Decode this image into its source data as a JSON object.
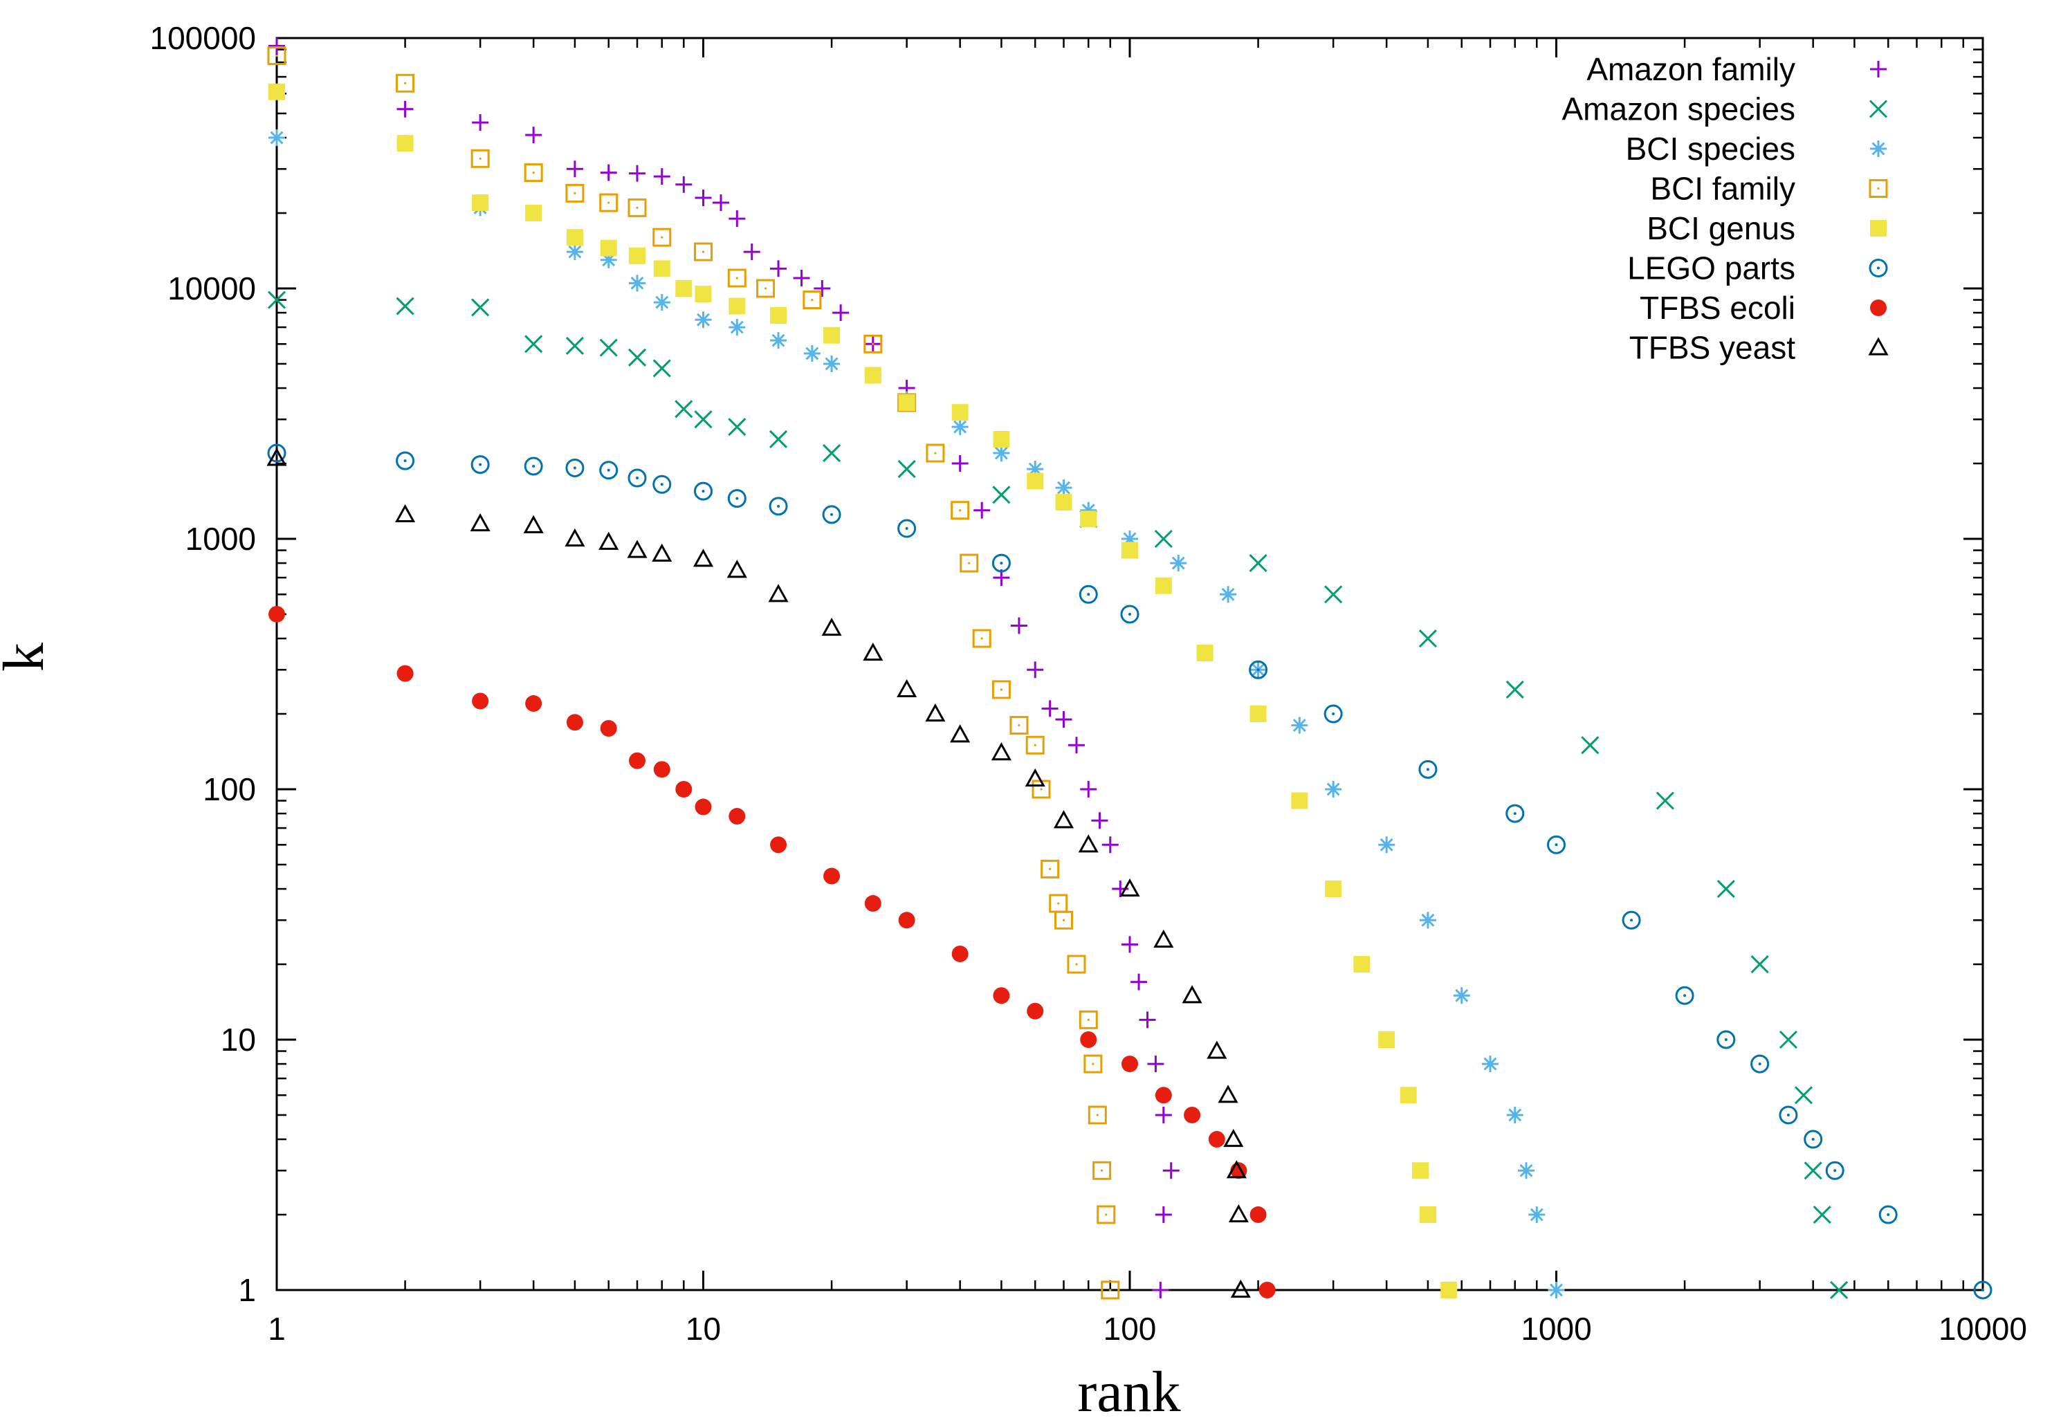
{
  "chart_data": {
    "type": "scatter",
    "title": "",
    "xlabel": "rank",
    "ylabel": "k",
    "xscale": "log",
    "yscale": "log",
    "xlim": [
      1,
      10000
    ],
    "ylim": [
      1,
      100000
    ],
    "xticks": [
      1,
      10,
      100,
      1000,
      10000
    ],
    "xtick_labels": [
      "1",
      "10",
      "100",
      "1000",
      "10000"
    ],
    "yticks": [
      1,
      10,
      100,
      1000,
      10000,
      100000
    ],
    "ytick_labels": [
      "1",
      "10",
      "100",
      "1000",
      "10000",
      "100000"
    ],
    "grid": false,
    "legend_position": "top-right",
    "series": [
      {
        "name": "Amazon family",
        "marker": "plus",
        "color": "#9400d3",
        "points": [
          [
            1,
            93000
          ],
          [
            2,
            52000
          ],
          [
            3,
            46000
          ],
          [
            4,
            41000
          ],
          [
            5,
            30000
          ],
          [
            6,
            29000
          ],
          [
            7,
            28800
          ],
          [
            8,
            28000
          ],
          [
            9,
            26000
          ],
          [
            10,
            23000
          ],
          [
            11,
            22000
          ],
          [
            12,
            19000
          ],
          [
            13,
            14000
          ],
          [
            15,
            12000
          ],
          [
            17,
            11000
          ],
          [
            19,
            10000
          ],
          [
            21,
            8000
          ],
          [
            25,
            6000
          ],
          [
            30,
            4000
          ],
          [
            40,
            2000
          ],
          [
            45,
            1300
          ],
          [
            50,
            700
          ],
          [
            55,
            450
          ],
          [
            60,
            300
          ],
          [
            65,
            210
          ],
          [
            70,
            190
          ],
          [
            75,
            150
          ],
          [
            80,
            100
          ],
          [
            85,
            75
          ],
          [
            90,
            60
          ],
          [
            95,
            40
          ],
          [
            100,
            24
          ],
          [
            105,
            17
          ],
          [
            110,
            12
          ],
          [
            115,
            8
          ],
          [
            120,
            5
          ],
          [
            125,
            3
          ],
          [
            120,
            2
          ],
          [
            118,
            1
          ]
        ]
      },
      {
        "name": "Amazon species",
        "marker": "x",
        "color": "#009e73",
        "points": [
          [
            1,
            9000
          ],
          [
            2,
            8500
          ],
          [
            3,
            8400
          ],
          [
            4,
            6000
          ],
          [
            5,
            5900
          ],
          [
            6,
            5800
          ],
          [
            7,
            5300
          ],
          [
            8,
            4800
          ],
          [
            9,
            3300
          ],
          [
            10,
            3000
          ],
          [
            12,
            2800
          ],
          [
            15,
            2500
          ],
          [
            20,
            2200
          ],
          [
            30,
            1900
          ],
          [
            50,
            1500
          ],
          [
            80,
            1200
          ],
          [
            120,
            1000
          ],
          [
            200,
            800
          ],
          [
            300,
            600
          ],
          [
            500,
            400
          ],
          [
            800,
            250
          ],
          [
            1200,
            150
          ],
          [
            1800,
            90
          ],
          [
            2500,
            40
          ],
          [
            3000,
            20
          ],
          [
            3500,
            10
          ],
          [
            3800,
            6
          ],
          [
            4000,
            3
          ],
          [
            4200,
            2
          ],
          [
            4600,
            1
          ]
        ]
      },
      {
        "name": "BCI species",
        "marker": "asterisk",
        "color": "#56b4e9",
        "points": [
          [
            1,
            40000
          ],
          [
            2,
            38000
          ],
          [
            3,
            21000
          ],
          [
            5,
            14000
          ],
          [
            6,
            13000
          ],
          [
            7,
            10500
          ],
          [
            8,
            8800
          ],
          [
            10,
            7500
          ],
          [
            12,
            7000
          ],
          [
            15,
            6200
          ],
          [
            18,
            5500
          ],
          [
            20,
            5000
          ],
          [
            25,
            4500
          ],
          [
            30,
            3600
          ],
          [
            40,
            2800
          ],
          [
            50,
            2200
          ],
          [
            60,
            1900
          ],
          [
            70,
            1600
          ],
          [
            80,
            1300
          ],
          [
            100,
            1000
          ],
          [
            130,
            800
          ],
          [
            170,
            600
          ],
          [
            200,
            300
          ],
          [
            250,
            180
          ],
          [
            300,
            100
          ],
          [
            400,
            60
          ],
          [
            500,
            30
          ],
          [
            600,
            15
          ],
          [
            700,
            8
          ],
          [
            800,
            5
          ],
          [
            850,
            3
          ],
          [
            900,
            2
          ],
          [
            1000,
            1
          ]
        ]
      },
      {
        "name": "BCI family",
        "marker": "square-open",
        "color": "#e69f00",
        "points": [
          [
            1,
            85000
          ],
          [
            2,
            66000
          ],
          [
            3,
            33000
          ],
          [
            4,
            29000
          ],
          [
            5,
            24000
          ],
          [
            6,
            22000
          ],
          [
            7,
            21000
          ],
          [
            8,
            16000
          ],
          [
            10,
            14000
          ],
          [
            12,
            11000
          ],
          [
            14,
            10000
          ],
          [
            18,
            9000
          ],
          [
            25,
            6000
          ],
          [
            30,
            3500
          ],
          [
            35,
            2200
          ],
          [
            40,
            1300
          ],
          [
            42,
            800
          ],
          [
            45,
            400
          ],
          [
            50,
            250
          ],
          [
            55,
            180
          ],
          [
            60,
            150
          ],
          [
            62,
            100
          ],
          [
            65,
            48
          ],
          [
            68,
            35
          ],
          [
            70,
            30
          ],
          [
            75,
            20
          ],
          [
            80,
            12
          ],
          [
            82,
            8
          ],
          [
            84,
            5
          ],
          [
            86,
            3
          ],
          [
            88,
            2
          ],
          [
            90,
            1
          ]
        ]
      },
      {
        "name": "BCI genus",
        "marker": "square-filled",
        "color": "#f0e442",
        "points": [
          [
            1,
            61000
          ],
          [
            2,
            38000
          ],
          [
            3,
            22000
          ],
          [
            4,
            20000
          ],
          [
            5,
            16000
          ],
          [
            6,
            14500
          ],
          [
            7,
            13500
          ],
          [
            8,
            12000
          ],
          [
            9,
            10000
          ],
          [
            10,
            9500
          ],
          [
            12,
            8500
          ],
          [
            15,
            7800
          ],
          [
            20,
            6500
          ],
          [
            25,
            4500
          ],
          [
            30,
            3500
          ],
          [
            40,
            3200
          ],
          [
            50,
            2500
          ],
          [
            60,
            1700
          ],
          [
            70,
            1400
          ],
          [
            80,
            1200
          ],
          [
            100,
            900
          ],
          [
            120,
            650
          ],
          [
            150,
            350
          ],
          [
            200,
            200
          ],
          [
            250,
            90
          ],
          [
            300,
            40
          ],
          [
            350,
            20
          ],
          [
            400,
            10
          ],
          [
            450,
            6
          ],
          [
            480,
            3
          ],
          [
            500,
            2
          ],
          [
            560,
            1
          ]
        ]
      },
      {
        "name": "LEGO parts",
        "marker": "circle-dot",
        "color": "#0072b2",
        "points": [
          [
            1,
            2200
          ],
          [
            2,
            2050
          ],
          [
            3,
            1980
          ],
          [
            4,
            1950
          ],
          [
            5,
            1920
          ],
          [
            6,
            1880
          ],
          [
            7,
            1750
          ],
          [
            8,
            1650
          ],
          [
            10,
            1550
          ],
          [
            12,
            1450
          ],
          [
            15,
            1350
          ],
          [
            20,
            1250
          ],
          [
            30,
            1100
          ],
          [
            50,
            800
          ],
          [
            80,
            600
          ],
          [
            100,
            500
          ],
          [
            200,
            300
          ],
          [
            300,
            200
          ],
          [
            500,
            120
          ],
          [
            800,
            80
          ],
          [
            1000,
            60
          ],
          [
            1500,
            30
          ],
          [
            2000,
            15
          ],
          [
            2500,
            10
          ],
          [
            3000,
            8
          ],
          [
            3500,
            5
          ],
          [
            4000,
            4
          ],
          [
            4500,
            3
          ],
          [
            6000,
            2
          ],
          [
            10000,
            1
          ]
        ]
      },
      {
        "name": "TFBS ecoli",
        "marker": "circle-filled",
        "color": "#e51e10",
        "points": [
          [
            1,
            500
          ],
          [
            2,
            290
          ],
          [
            3,
            225
          ],
          [
            4,
            220
          ],
          [
            5,
            185
          ],
          [
            6,
            175
          ],
          [
            7,
            130
          ],
          [
            8,
            120
          ],
          [
            9,
            100
          ],
          [
            10,
            85
          ],
          [
            12,
            78
          ],
          [
            15,
            60
          ],
          [
            20,
            45
          ],
          [
            25,
            35
          ],
          [
            30,
            30
          ],
          [
            40,
            22
          ],
          [
            50,
            15
          ],
          [
            60,
            13
          ],
          [
            80,
            10
          ],
          [
            100,
            8
          ],
          [
            120,
            6
          ],
          [
            140,
            5
          ],
          [
            160,
            4
          ],
          [
            180,
            3
          ],
          [
            200,
            2
          ],
          [
            210,
            1
          ]
        ]
      },
      {
        "name": "TFBS yeast",
        "marker": "triangle-open",
        "color": "#000000",
        "points": [
          [
            1,
            2100
          ],
          [
            2,
            1250
          ],
          [
            3,
            1150
          ],
          [
            4,
            1130
          ],
          [
            5,
            1000
          ],
          [
            6,
            970
          ],
          [
            7,
            900
          ],
          [
            8,
            870
          ],
          [
            10,
            830
          ],
          [
            12,
            750
          ],
          [
            15,
            600
          ],
          [
            20,
            440
          ],
          [
            25,
            350
          ],
          [
            30,
            250
          ],
          [
            35,
            200
          ],
          [
            40,
            165
          ],
          [
            50,
            140
          ],
          [
            60,
            110
          ],
          [
            70,
            75
          ],
          [
            80,
            60
          ],
          [
            100,
            40
          ],
          [
            120,
            25
          ],
          [
            140,
            15
          ],
          [
            160,
            9
          ],
          [
            170,
            6
          ],
          [
            175,
            4
          ],
          [
            178,
            3
          ],
          [
            180,
            2
          ],
          [
            182,
            1
          ]
        ]
      }
    ]
  }
}
